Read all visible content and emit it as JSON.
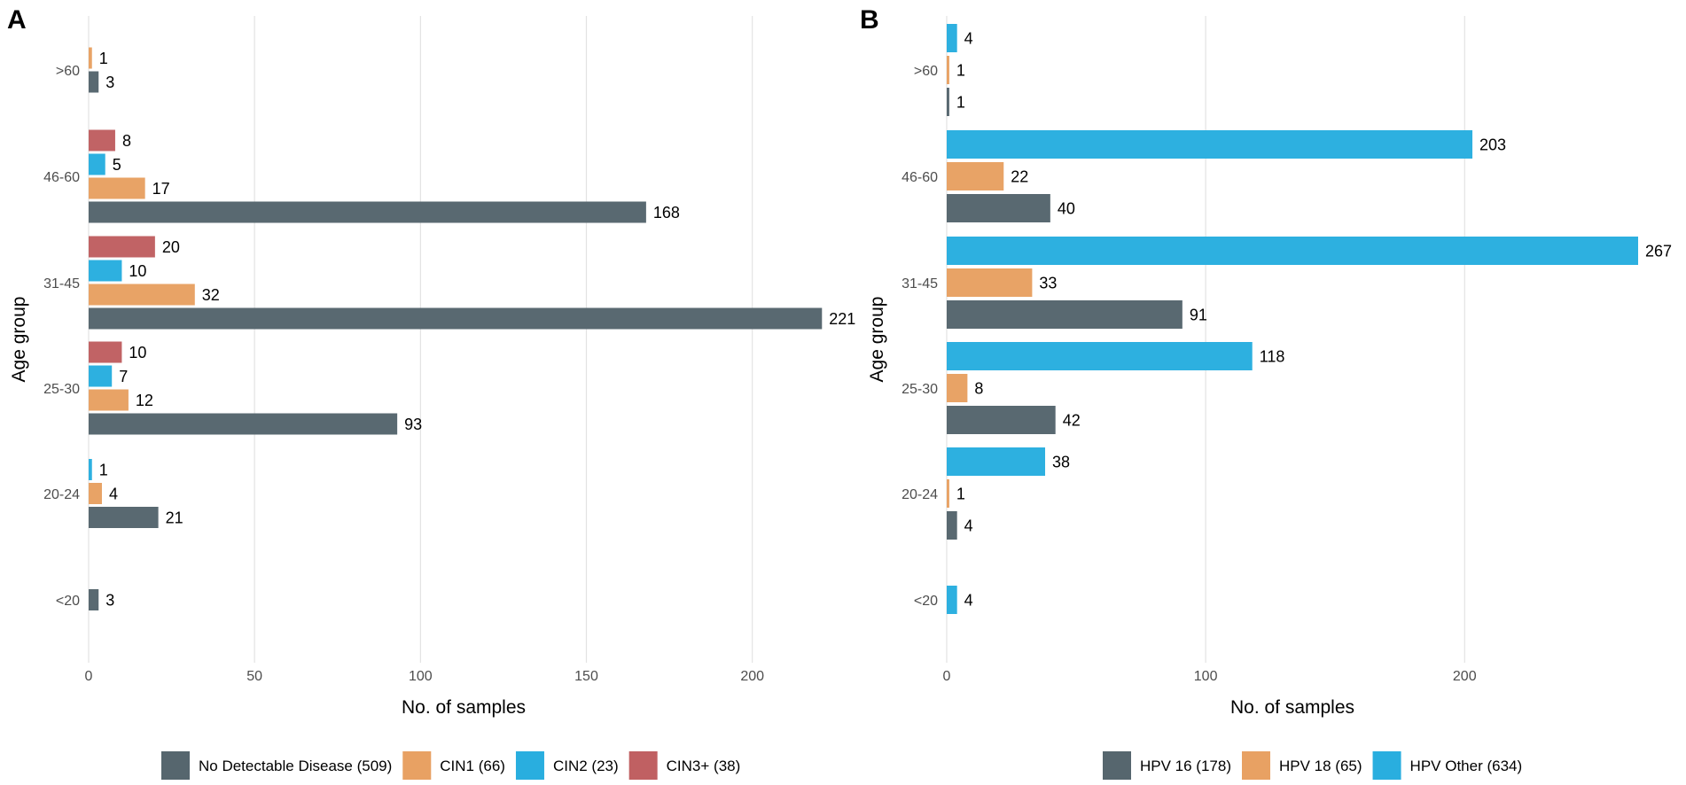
{
  "colors": {
    "slate": "#56666e",
    "orange": "#e8a163",
    "blue": "#29aedf",
    "red": "#c06062",
    "grid": "#e3e3e3"
  },
  "chart_data": [
    {
      "panel": "A",
      "type": "bar",
      "orientation": "horizontal",
      "xlabel": "No. of samples",
      "ylabel": "Age group",
      "xlim": [
        0,
        226
      ],
      "x_ticks": [
        0,
        50,
        100,
        150,
        200
      ],
      "categories": [
        "<20",
        "20-24",
        "25-30",
        "31-45",
        "46-60",
        ">60"
      ],
      "series": [
        {
          "name": "No Detectable Disease (509)",
          "color": "#56666e",
          "values": [
            3,
            21,
            93,
            221,
            168,
            3
          ]
        },
        {
          "name": "CIN1 (66)",
          "color": "#e8a163",
          "values": [
            null,
            4,
            12,
            32,
            17,
            1
          ]
        },
        {
          "name": "CIN2 (23)",
          "color": "#29aedf",
          "values": [
            null,
            1,
            7,
            10,
            5,
            null
          ]
        },
        {
          "name": "CIN3+ (38)",
          "color": "#c06062",
          "values": [
            null,
            null,
            10,
            20,
            8,
            null
          ]
        }
      ]
    },
    {
      "panel": "B",
      "type": "bar",
      "orientation": "horizontal",
      "xlabel": "No. of samples",
      "ylabel": "Age group",
      "xlim": [
        0,
        267
      ],
      "x_ticks": [
        0,
        100,
        200
      ],
      "categories": [
        "<20",
        "20-24",
        "25-30",
        "31-45",
        "46-60",
        ">60"
      ],
      "series": [
        {
          "name": "HPV 16 (178)",
          "color": "#56666e",
          "values": [
            null,
            4,
            42,
            91,
            40,
            1
          ]
        },
        {
          "name": "HPV 18 (65)",
          "color": "#e8a163",
          "values": [
            null,
            1,
            8,
            33,
            22,
            1
          ]
        },
        {
          "name": "HPV Other (634)",
          "color": "#29aedf",
          "values": [
            4,
            38,
            118,
            267,
            203,
            4
          ]
        }
      ]
    }
  ]
}
